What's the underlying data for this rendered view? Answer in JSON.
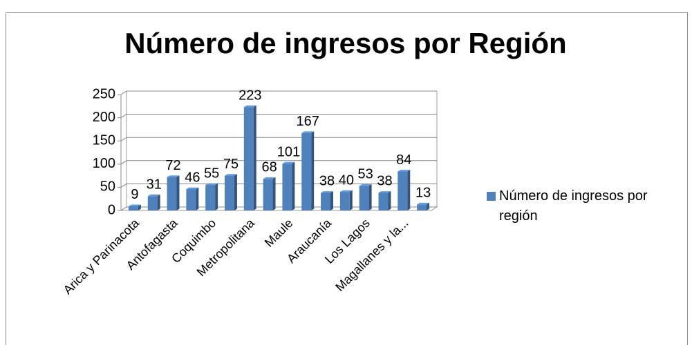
{
  "chart_data": {
    "type": "bar",
    "title": "Número de ingresos por Región",
    "categories": [
      "Arica y Parinacota",
      null,
      "Antofagasta",
      null,
      "Coquimbo",
      null,
      "Metropolitana",
      null,
      "Maule",
      null,
      "Araucanía",
      null,
      "Los Lagos",
      null,
      "Magallanes y la...",
      null
    ],
    "series": [
      {
        "name": "Número de ingresos por región",
        "color": "#4f81bd",
        "values": [
          9,
          31,
          72,
          46,
          55,
          75,
          223,
          68,
          101,
          167,
          38,
          40,
          53,
          38,
          84,
          13
        ]
      }
    ],
    "ylim": [
      0,
      250
    ],
    "yticks": [
      0,
      50,
      100,
      150,
      200,
      250
    ],
    "grid": true,
    "legend": "right"
  }
}
